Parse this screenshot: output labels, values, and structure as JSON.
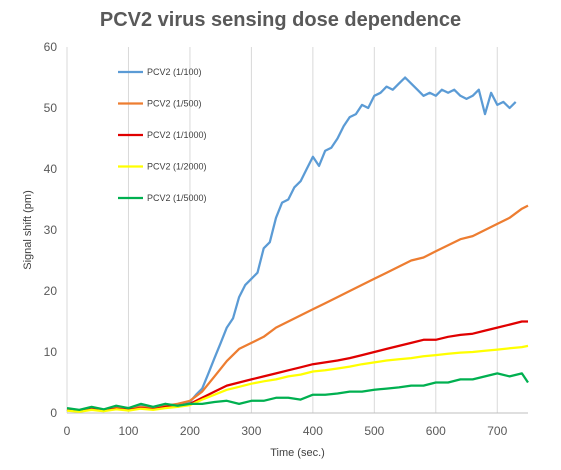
{
  "chart_data": {
    "type": "line",
    "title": "PCV2 virus sensing dose dependence",
    "xlabel": "Time (sec.)",
    "ylabel": "Signal shift (pm)",
    "xlim": [
      0,
      750
    ],
    "ylim": [
      0,
      60
    ],
    "xticks": [
      0,
      100,
      200,
      300,
      400,
      500,
      600,
      700
    ],
    "yticks": [
      0,
      10,
      20,
      30,
      40,
      50,
      60
    ],
    "grid": "vertical",
    "legend_position": "top-left",
    "series": [
      {
        "name": "PCV2 (1/100)",
        "color": "#5b9bd5",
        "x": [
          0,
          20,
          40,
          60,
          80,
          100,
          120,
          140,
          160,
          180,
          200,
          210,
          220,
          230,
          240,
          250,
          260,
          270,
          280,
          290,
          300,
          310,
          320,
          330,
          340,
          350,
          360,
          370,
          380,
          390,
          400,
          410,
          420,
          430,
          440,
          450,
          460,
          470,
          480,
          490,
          500,
          510,
          520,
          530,
          540,
          550,
          560,
          570,
          580,
          590,
          600,
          610,
          620,
          630,
          640,
          650,
          660,
          670,
          680,
          690,
          700,
          710,
          720,
          730
        ],
        "y": [
          0.5,
          0.3,
          0.8,
          0.5,
          1.0,
          0.8,
          1.2,
          0.6,
          1.5,
          1.0,
          1.8,
          3.0,
          4.0,
          6.5,
          9.0,
          11.5,
          14.0,
          15.5,
          19.0,
          21.0,
          22.0,
          23.0,
          27.0,
          28.0,
          32.0,
          34.5,
          35.0,
          37.0,
          38.0,
          40.0,
          42.0,
          40.5,
          43.0,
          43.5,
          45.0,
          47.0,
          48.5,
          49.0,
          50.5,
          50.0,
          52.0,
          52.5,
          53.5,
          53.0,
          54.0,
          55.0,
          54.0,
          53.0,
          52.0,
          52.5,
          52.0,
          53.0,
          52.5,
          53.0,
          52.0,
          51.5,
          52.0,
          53.0,
          49.0,
          52.5,
          50.5,
          51.0,
          50.0,
          51.0
        ]
      },
      {
        "name": "PCV2 (1/500)",
        "color": "#ed7d31",
        "x": [
          0,
          20,
          40,
          60,
          80,
          100,
          120,
          140,
          160,
          180,
          200,
          220,
          240,
          260,
          280,
          300,
          320,
          340,
          360,
          380,
          400,
          420,
          440,
          460,
          480,
          500,
          520,
          540,
          560,
          580,
          600,
          620,
          640,
          660,
          680,
          700,
          720,
          740,
          750
        ],
        "y": [
          0.5,
          0.3,
          0.7,
          0.5,
          0.8,
          0.6,
          1.0,
          0.8,
          1.2,
          1.5,
          2.0,
          3.5,
          6.0,
          8.5,
          10.5,
          11.5,
          12.5,
          14.0,
          15.0,
          16.0,
          17.0,
          18.0,
          19.0,
          20.0,
          21.0,
          22.0,
          23.0,
          24.0,
          25.0,
          25.5,
          26.5,
          27.5,
          28.5,
          29.0,
          30.0,
          31.0,
          32.0,
          33.5,
          34.0
        ]
      },
      {
        "name": "PCV2 (1/1000)",
        "color": "#e00000",
        "x": [
          0,
          20,
          40,
          60,
          80,
          100,
          120,
          140,
          160,
          180,
          200,
          220,
          240,
          260,
          280,
          300,
          320,
          340,
          360,
          380,
          400,
          420,
          440,
          460,
          480,
          500,
          520,
          540,
          560,
          580,
          600,
          620,
          640,
          660,
          680,
          700,
          720,
          740,
          750
        ],
        "y": [
          0.5,
          0.3,
          0.6,
          0.4,
          0.7,
          0.5,
          0.8,
          0.6,
          1.0,
          1.2,
          1.5,
          2.5,
          3.5,
          4.5,
          5.0,
          5.5,
          6.0,
          6.5,
          7.0,
          7.5,
          8.0,
          8.3,
          8.6,
          9.0,
          9.5,
          10.0,
          10.5,
          11.0,
          11.5,
          12.0,
          12.0,
          12.5,
          12.8,
          13.0,
          13.5,
          14.0,
          14.5,
          15.0,
          15.0
        ]
      },
      {
        "name": "PCV2 (1/2000)",
        "color": "#ffff00",
        "x": [
          0,
          20,
          40,
          60,
          80,
          100,
          120,
          140,
          160,
          180,
          200,
          220,
          240,
          260,
          280,
          300,
          320,
          340,
          360,
          380,
          400,
          420,
          440,
          460,
          480,
          500,
          520,
          540,
          560,
          580,
          600,
          620,
          640,
          660,
          680,
          700,
          720,
          740,
          750
        ],
        "y": [
          0.4,
          0.2,
          0.5,
          0.3,
          0.6,
          0.4,
          0.7,
          0.5,
          0.8,
          1.0,
          1.3,
          2.2,
          3.0,
          3.8,
          4.3,
          4.8,
          5.2,
          5.5,
          6.0,
          6.3,
          6.8,
          7.0,
          7.3,
          7.6,
          8.0,
          8.3,
          8.6,
          8.8,
          9.0,
          9.3,
          9.5,
          9.7,
          9.9,
          10.0,
          10.2,
          10.4,
          10.6,
          10.8,
          11.0
        ]
      },
      {
        "name": "PCV2 (1/5000)",
        "color": "#00b050",
        "x": [
          0,
          20,
          40,
          60,
          80,
          100,
          120,
          140,
          160,
          180,
          200,
          220,
          240,
          260,
          280,
          300,
          320,
          340,
          360,
          380,
          400,
          420,
          440,
          460,
          480,
          500,
          520,
          540,
          560,
          580,
          600,
          620,
          640,
          660,
          680,
          700,
          720,
          740,
          750
        ],
        "y": [
          0.8,
          0.5,
          1.0,
          0.6,
          1.2,
          0.8,
          1.5,
          1.0,
          1.5,
          1.2,
          1.5,
          1.5,
          1.8,
          2.0,
          1.5,
          2.0,
          2.0,
          2.5,
          2.5,
          2.2,
          3.0,
          3.0,
          3.2,
          3.5,
          3.5,
          3.8,
          4.0,
          4.2,
          4.5,
          4.5,
          5.0,
          5.0,
          5.5,
          5.5,
          6.0,
          6.5,
          6.0,
          6.5,
          5.0
        ]
      }
    ]
  }
}
